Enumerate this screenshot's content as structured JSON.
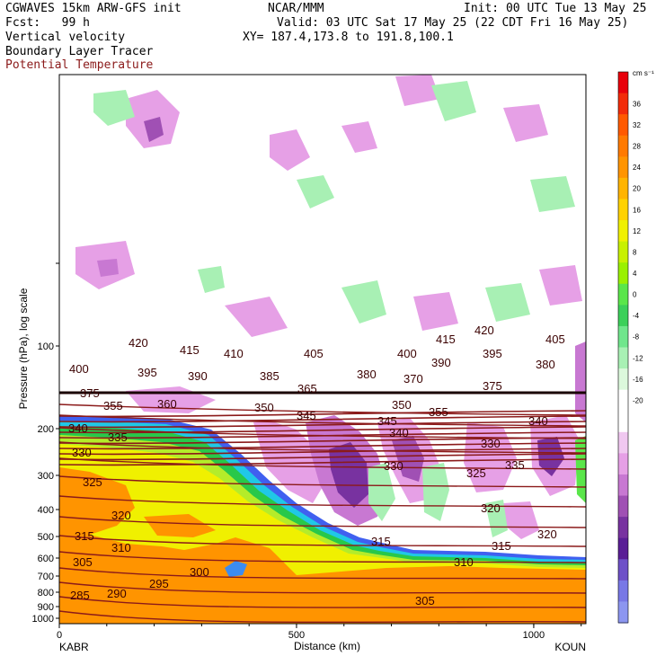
{
  "header": {
    "model_line": "CGWAVES 15km ARW-GFS init",
    "org": "NCAR/MMM",
    "init": "Init: 00 UTC Tue 13 May 25",
    "fcst": "Fcst:   99 h",
    "valid": "Valid: 03 UTC Sat 17 May 25 (22 CDT Fri 16 May 25)",
    "field1": "Vertical velocity",
    "xy": "XY= 187.4,173.8 to 191.8,100.1",
    "field2": "Boundary Layer Tracer",
    "field3": "Potential Temperature",
    "field3_color": "#8b1a1a"
  },
  "chart_data": {
    "type": "heatmap",
    "xlabel": "Distance (km)",
    "ylabel": "Pressure (hPa), log scale",
    "x_ticks": [
      "0",
      "500",
      "1000"
    ],
    "x_range": [
      0,
      1110
    ],
    "y_ticks": [
      "100",
      "200",
      "300",
      "400",
      "500",
      "600",
      "700",
      "800",
      "900",
      "1000"
    ],
    "y_scale": "log",
    "left_station": "KABR",
    "right_station": "KOUN",
    "colorbar": {
      "unit": "cm s⁻¹",
      "tick_labels": [
        "36",
        "32",
        "28",
        "24",
        "20",
        "16",
        "12",
        "8",
        "4",
        "0",
        "-4",
        "-8",
        "-12",
        "-16",
        "-20"
      ],
      "colors": [
        "#e8000b",
        "#f22c0a",
        "#ff5a00",
        "#ff7a00",
        "#ff9400",
        "#ffb400",
        "#ffd200",
        "#f0f000",
        "#c8f000",
        "#9af000",
        "#5ae64a",
        "#3cd05a",
        "#70e68c",
        "#a8f0b4",
        "#dcf8dc",
        "#ffffff",
        "#ffffff",
        "#f0c8f0",
        "#e6a0e6",
        "#c878d2",
        "#a050b4",
        "#7832a0",
        "#5a1e96",
        "#6e50c8",
        "#7878e6",
        "#8c96f0"
      ]
    },
    "theta_contour_labels": [
      "285",
      "290",
      "295",
      "300",
      "305",
      "305",
      "310",
      "310",
      "315",
      "315",
      "315",
      "320",
      "320",
      "320",
      "325",
      "325",
      "330",
      "330",
      "330",
      "335",
      "335",
      "340",
      "340",
      "340",
      "345",
      "345",
      "350",
      "350",
      "355",
      "355",
      "360",
      "365",
      "370",
      "375",
      "375",
      "380",
      "380",
      "385",
      "390",
      "390",
      "395",
      "395",
      "400",
      "400",
      "405",
      "405",
      "410",
      "415",
      "415",
      "420",
      "420"
    ]
  }
}
